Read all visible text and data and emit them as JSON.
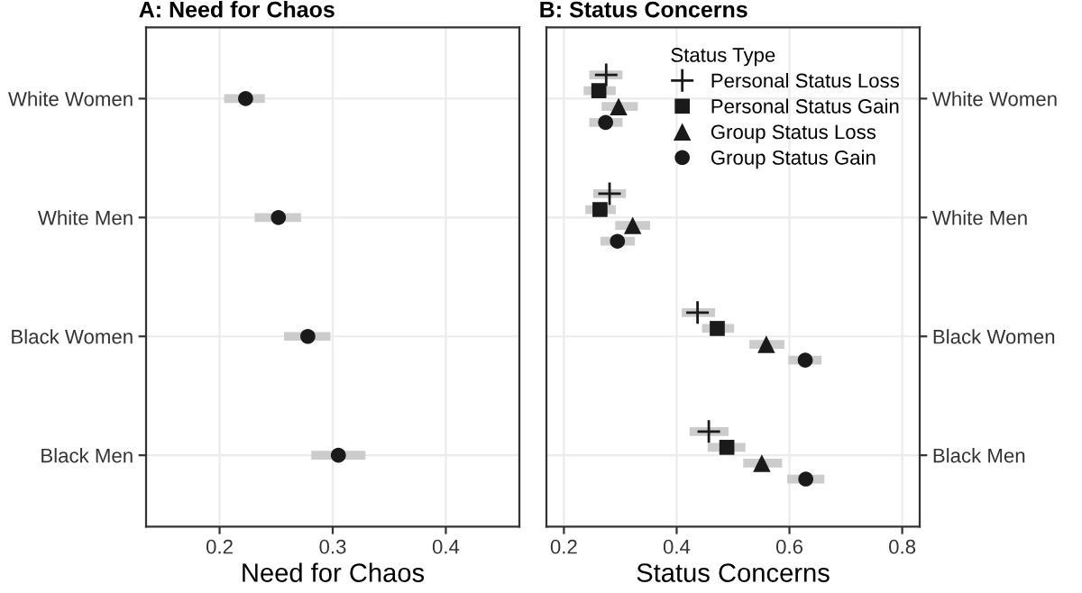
{
  "chart_data": [
    {
      "type": "scatter",
      "title": "A: Need for Chaos",
      "xlabel": "Need for Chaos",
      "orientation": "horizontal",
      "categories": [
        "White Women",
        "White Men",
        "Black Women",
        "Black Men"
      ],
      "xlim": [
        0.135,
        0.465
      ],
      "xticks": [
        0.2,
        0.3,
        0.4
      ],
      "grid": true,
      "marker": "circle",
      "legend": false,
      "series": [
        {
          "color": "#1a1a1a",
          "values": [
            0.223,
            0.252,
            0.278,
            0.305
          ],
          "errors": [
            [
              0.204,
              0.24
            ],
            [
              0.231,
              0.272
            ],
            [
              0.257,
              0.298
            ],
            [
              0.281,
              0.329
            ]
          ]
        }
      ]
    },
    {
      "type": "scatter",
      "title": "B: Status Concerns",
      "xlabel": "Status Concerns",
      "orientation": "horizontal",
      "categories": [
        "White Women",
        "White Men",
        "Black Women",
        "Black Men"
      ],
      "xlim": [
        0.169,
        0.831
      ],
      "xticks": [
        0.2,
        0.4,
        0.6,
        0.8
      ],
      "grid": true,
      "legend": "top right",
      "legend_title": "Status Type",
      "series": [
        {
          "name": "Personal Status Loss",
          "color": "#1a1a1a",
          "marker": "cross",
          "values": [
            0.275,
            0.281,
            0.437,
            0.457
          ],
          "errors": [
            [
              0.245,
              0.304
            ],
            [
              0.252,
              0.31
            ],
            [
              0.409,
              0.468
            ],
            [
              0.423,
              0.492
            ]
          ]
        },
        {
          "name": "Personal Status Gain",
          "color": "#1a1a1a",
          "marker": "square",
          "values": [
            0.262,
            0.264,
            0.472,
            0.489
          ],
          "errors": [
            [
              0.235,
              0.292
            ],
            [
              0.238,
              0.292
            ],
            [
              0.445,
              0.502
            ],
            [
              0.455,
              0.522
            ]
          ]
        },
        {
          "name": "Group Status Loss",
          "color": "#1a1a1a",
          "marker": "triangle",
          "values": [
            0.297,
            0.322,
            0.559,
            0.551
          ],
          "errors": [
            [
              0.267,
              0.331
            ],
            [
              0.291,
              0.353
            ],
            [
              0.529,
              0.591
            ],
            [
              0.518,
              0.587
            ]
          ]
        },
        {
          "name": "Group Status Gain",
          "color": "#1a1a1a",
          "marker": "circle",
          "values": [
            0.274,
            0.295,
            0.628,
            0.629
          ],
          "errors": [
            [
              0.245,
              0.304
            ],
            [
              0.265,
              0.326
            ],
            [
              0.598,
              0.657
            ],
            [
              0.596,
              0.662
            ]
          ]
        }
      ]
    }
  ]
}
